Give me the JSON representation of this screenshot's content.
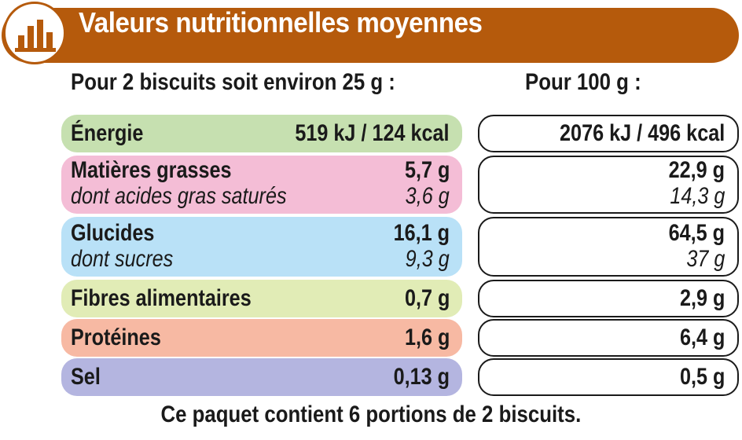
{
  "title": "Valeurs nutritionnelles moyennes",
  "logo_icon": "bar-chart-icon",
  "columns": {
    "per_portion": "Pour 2 biscuits soit environ 25 g :",
    "per_100g": "Pour 100 g :"
  },
  "colors": {
    "header": "#b55a0c",
    "energie": "#c6e0b0",
    "matieres": "#f4bdd6",
    "glucides": "#b9e1f7",
    "fibres": "#e1ecb6",
    "proteines": "#f7b9a3",
    "sel": "#b4b5e0"
  },
  "rows": {
    "energie": {
      "label": "Énergie",
      "portion": "519 kJ / 124 kcal",
      "per100": "2076 kJ / 496 kcal"
    },
    "matieres": {
      "label": "Matières grasses",
      "portion": "5,7 g",
      "per100": "22,9 g",
      "sub_label": "dont acides gras saturés",
      "sub_portion": "3,6 g",
      "sub_per100": "14,3 g"
    },
    "glucides": {
      "label": "Glucides",
      "portion": "16,1 g",
      "per100": "64,5 g",
      "sub_label": "dont sucres",
      "sub_portion": "9,3 g",
      "sub_per100": "37 g"
    },
    "fibres": {
      "label": "Fibres alimentaires",
      "portion": "0,7 g",
      "per100": "2,9 g"
    },
    "proteines": {
      "label": "Protéines",
      "portion": "1,6 g",
      "per100": "6,4 g"
    },
    "sel": {
      "label": "Sel",
      "portion": "0,13 g",
      "per100": "0,5 g"
    }
  },
  "footer": "Ce paquet contient 6 portions de 2 biscuits."
}
